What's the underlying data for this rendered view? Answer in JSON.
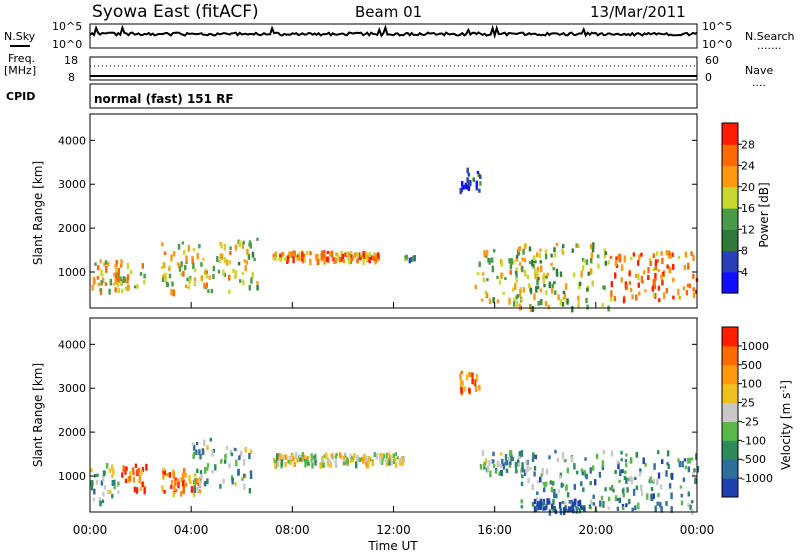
{
  "header": {
    "station": "Syowa East (fitACF)",
    "beam": "Beam 01",
    "date": "13/Mar/2011"
  },
  "noise_panel": {
    "left_label": "N.Sky",
    "right_label": "N.Search",
    "top_tick_left": "10^5",
    "bottom_tick_left": "10^0",
    "top_tick_right": "10^5",
    "bottom_tick_right": "10^0"
  },
  "freq_panel": {
    "left_label_line1": "Freq.",
    "left_label_line2": "[MHz]",
    "right_label": "Nave",
    "left_ticks": [
      "18",
      "8"
    ],
    "right_ticks": [
      "60",
      "0"
    ]
  },
  "cpid_panel": {
    "label": "CPID",
    "mode_text": "normal (fast) 151 RF"
  },
  "x_axis": {
    "title": "Time UT",
    "tick_labels": [
      "00:00",
      "04:00",
      "08:00",
      "12:00",
      "16:00",
      "20:00",
      "00:00"
    ]
  },
  "chart_data": [
    {
      "type": "heatmap",
      "name": "power",
      "xlabel": "Time UT",
      "ylabel": "Slant Range [km]",
      "xlim": [
        0,
        24
      ],
      "ylim": [
        180,
        4600
      ],
      "yticks": [
        1000,
        2000,
        3000,
        4000
      ],
      "colorbar": {
        "label": "Power [dB]",
        "ticks": [
          "4",
          "8",
          "12",
          "16",
          "20",
          "24",
          "28"
        ],
        "colors": [
          "#1010ff",
          "#2a40b8",
          "#2f7a3a",
          "#4a9a4a",
          "#c8d830",
          "#ff9a10",
          "#ff6a00",
          "#ff1e00"
        ]
      },
      "regions": [
        {
          "t0": 0.0,
          "t1": 2.2,
          "r0": 600,
          "r1": 1300,
          "level": 0.65
        },
        {
          "t0": 2.8,
          "t1": 5.6,
          "r0": 600,
          "r1": 1700,
          "level": 0.6
        },
        {
          "t0": 5.6,
          "t1": 6.6,
          "r0": 700,
          "r1": 1800,
          "level": 0.55
        },
        {
          "t0": 7.2,
          "t1": 11.4,
          "r0": 1300,
          "r1": 1500,
          "level": 0.75
        },
        {
          "t0": 12.4,
          "t1": 12.8,
          "r0": 1300,
          "r1": 1400,
          "level": 0.4
        },
        {
          "t0": 14.6,
          "t1": 15.4,
          "r0": 2900,
          "r1": 3400,
          "level": 0.2
        },
        {
          "t0": 15.2,
          "t1": 18.0,
          "r0": 300,
          "r1": 1600,
          "level": 0.55
        },
        {
          "t0": 16.8,
          "t1": 20.5,
          "r0": 220,
          "r1": 1700,
          "level": 0.5
        },
        {
          "t0": 20.5,
          "t1": 24.0,
          "r0": 400,
          "r1": 1500,
          "level": 0.8
        }
      ]
    },
    {
      "type": "heatmap",
      "name": "velocity",
      "xlabel": "Time UT",
      "ylabel": "Slant Range [km]",
      "xlim": [
        0,
        24
      ],
      "ylim": [
        180,
        4600
      ],
      "yticks": [
        1000,
        2000,
        3000,
        4000
      ],
      "colorbar": {
        "label": "Velocity [m s^-1]",
        "ticks": [
          "1000",
          "500",
          "100",
          "25",
          "-25",
          "-100",
          "-500",
          "-1000"
        ],
        "colors": [
          "#2040b0",
          "#2f6e9a",
          "#2f8a5a",
          "#5ab84a",
          "#c8c8c8",
          "#f0c020",
          "#ff9a10",
          "#ff6a00",
          "#ff1e00"
        ]
      },
      "regions": [
        {
          "t0": 0.0,
          "t1": 1.2,
          "r0": 400,
          "r1": 1300,
          "level": 0.4
        },
        {
          "t0": 1.2,
          "t1": 2.2,
          "r0": 700,
          "r1": 1300,
          "level": 0.8
        },
        {
          "t0": 2.8,
          "t1": 4.4,
          "r0": 600,
          "r1": 1200,
          "level": 0.82
        },
        {
          "t0": 4.0,
          "t1": 6.4,
          "r0": 700,
          "r1": 1900,
          "level": 0.35
        },
        {
          "t0": 7.2,
          "t1": 12.4,
          "r0": 1300,
          "r1": 1550,
          "level": 0.5
        },
        {
          "t0": 14.6,
          "t1": 15.4,
          "r0": 2900,
          "r1": 3400,
          "level": 0.8
        },
        {
          "t0": 15.4,
          "t1": 17.5,
          "r0": 1100,
          "r1": 1600,
          "level": 0.35
        },
        {
          "t0": 17.0,
          "t1": 24.0,
          "r0": 250,
          "r1": 1600,
          "level": 0.3
        },
        {
          "t0": 17.5,
          "t1": 19.5,
          "r0": 230,
          "r1": 500,
          "level": 0.05
        }
      ]
    }
  ]
}
